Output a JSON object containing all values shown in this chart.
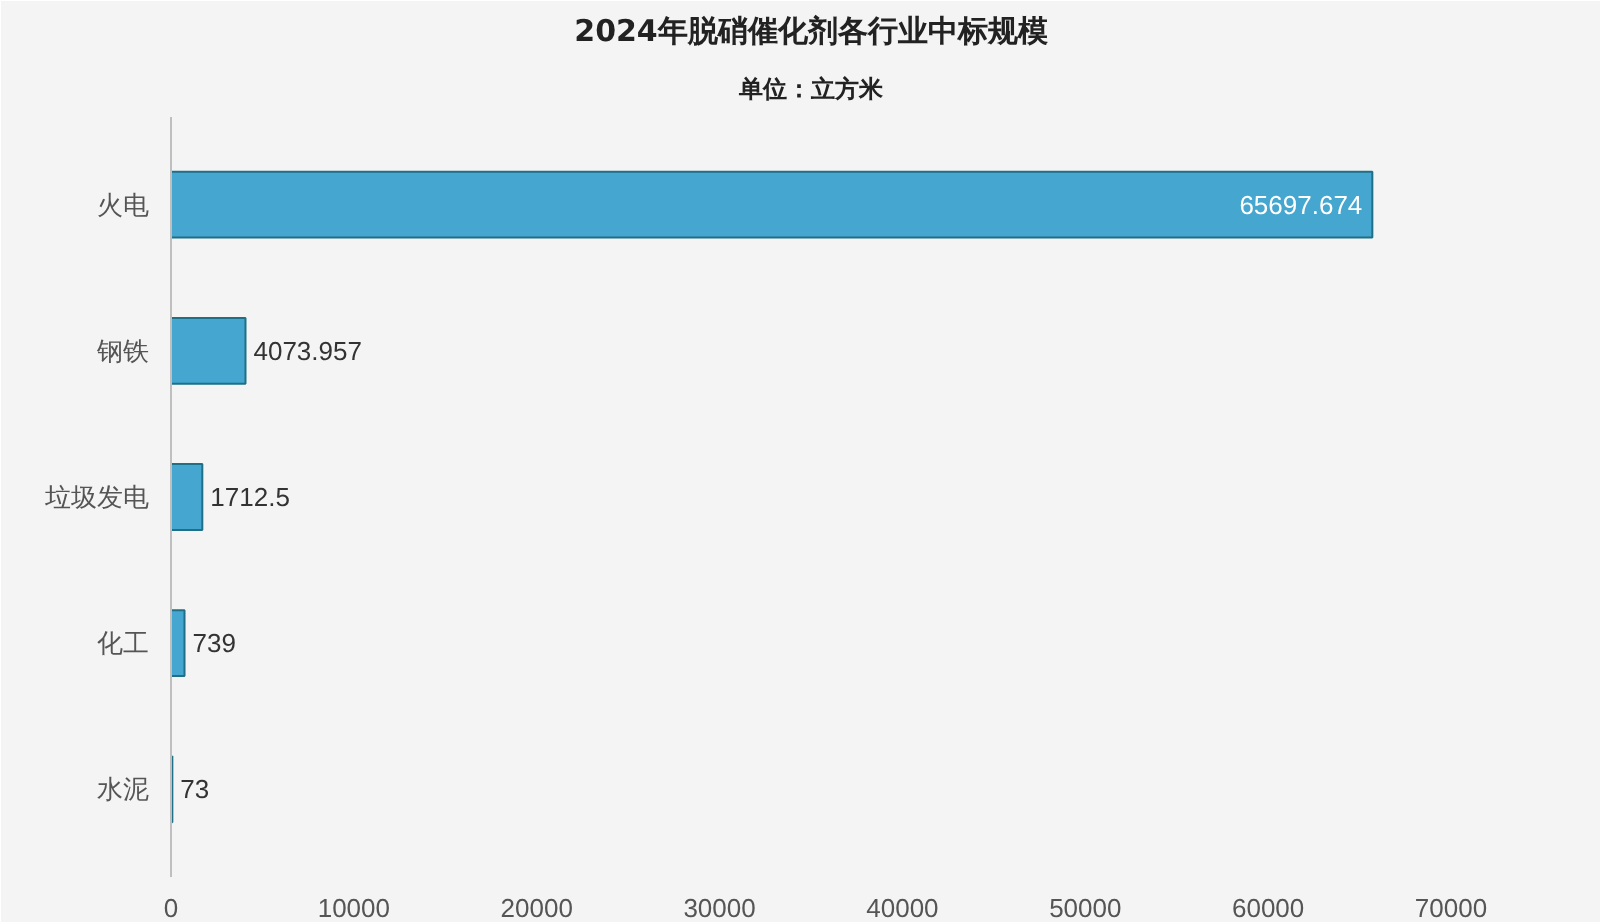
{
  "chart_data": {
    "type": "bar",
    "orientation": "horizontal",
    "title": "2024年脱硝催化剂各行业中标规模",
    "subtitle": "单位：立方米",
    "categories": [
      "火电",
      "钢铁",
      "垃圾发电",
      "化工",
      "水泥"
    ],
    "values": [
      65697.674,
      4073.957,
      1712.5,
      739,
      73
    ],
    "color": "#45a6cf",
    "data_labels": true,
    "grid": false,
    "xlim": [
      0,
      70000
    ],
    "xticks": [
      0,
      10000,
      20000,
      30000,
      40000,
      50000,
      60000,
      70000
    ]
  }
}
